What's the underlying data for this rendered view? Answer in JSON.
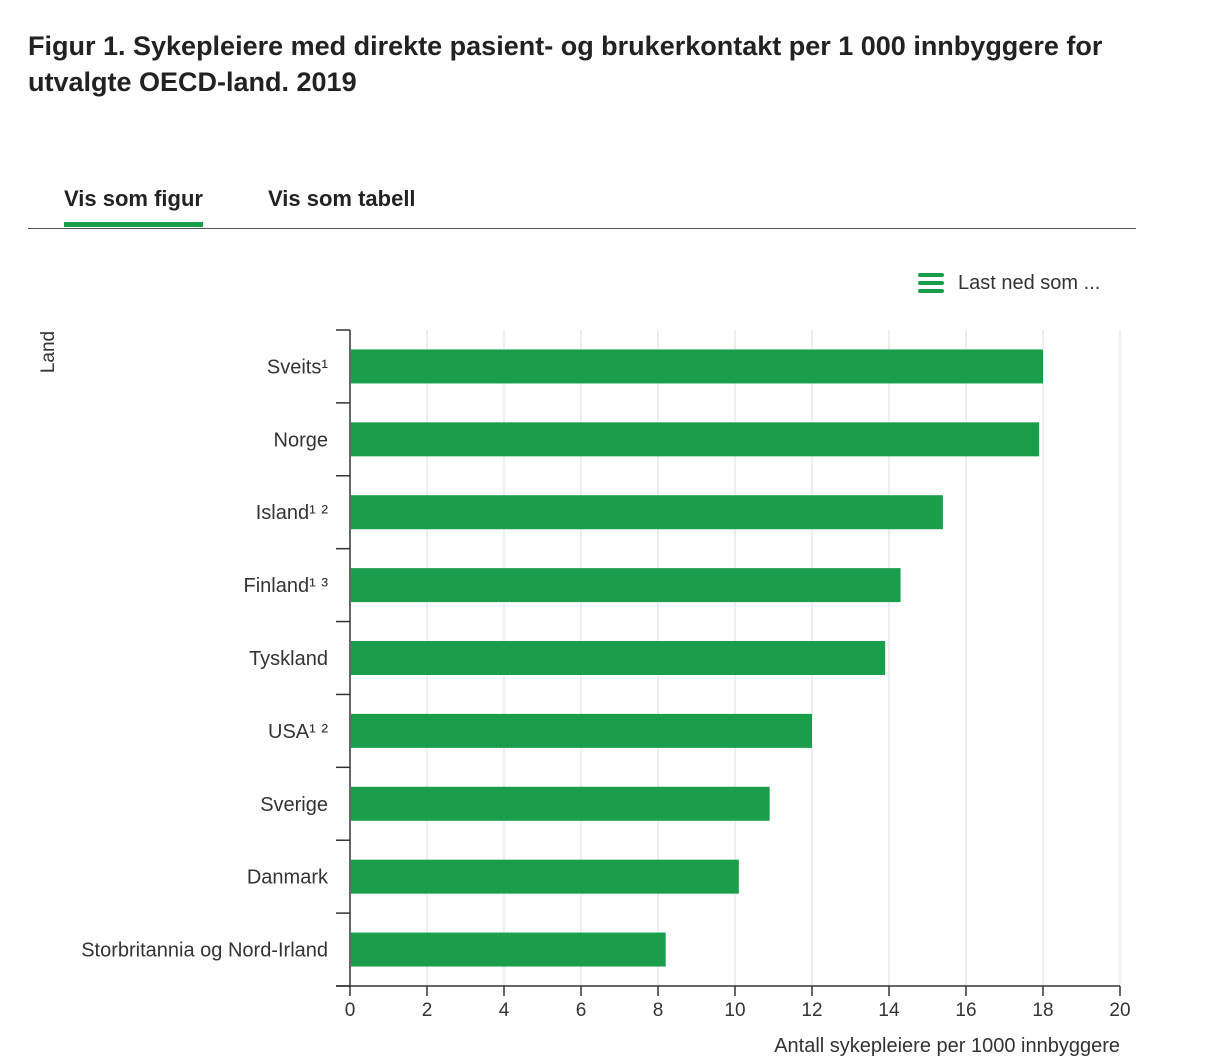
{
  "figure": {
    "title": "Figur 1. Sykepleiere med direkte pasient- og brukerkontakt per 1 000 innbyggere for utvalgte OECD-land. 2019"
  },
  "tabs": [
    {
      "label": "Vis som figur",
      "active": true
    },
    {
      "label": "Vis som tabell",
      "active": false
    }
  ],
  "download": {
    "label": "Last ned som ...",
    "icon": "hamburger-menu-icon"
  },
  "colors": {
    "bar": "#1a9e4b",
    "accent": "#1a9e4b",
    "grid": "#dddddd",
    "axis": "#333333",
    "text": "#333333"
  },
  "chart_data": {
    "type": "bar",
    "orientation": "horizontal",
    "categories": [
      "Sveits¹",
      "Norge",
      "Island¹ ²",
      "Finland¹ ³",
      "Tyskland",
      "USA¹ ²",
      "Sverige",
      "Danmark",
      "Storbritannia og Nord-Irland"
    ],
    "values": [
      18.0,
      17.9,
      15.4,
      14.3,
      13.9,
      12.0,
      10.9,
      10.1,
      8.2
    ],
    "xlabel": "Antall sykepleiere per 1000 innbyggere",
    "ylabel": "Land",
    "xlim": [
      0,
      20
    ],
    "xticks": [
      0,
      2,
      4,
      6,
      8,
      10,
      12,
      14,
      16,
      18,
      20
    ],
    "grid": "vertical",
    "legend": "none"
  }
}
